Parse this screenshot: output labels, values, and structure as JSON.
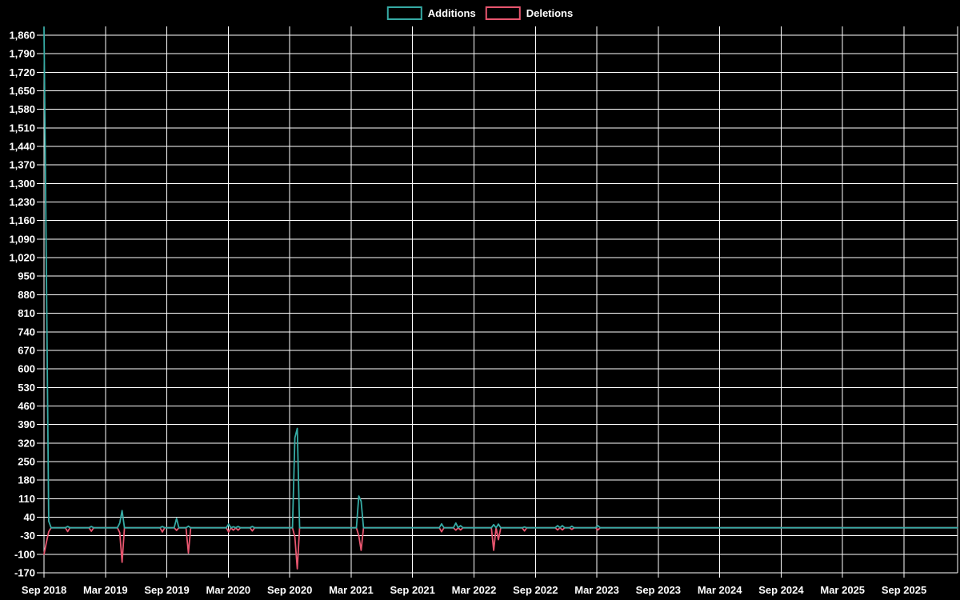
{
  "colors": {
    "background": "#000000",
    "grid": "#ffffff",
    "text": "#ffffff",
    "additions": "#36aba5",
    "deletions": "#e8566f"
  },
  "legend": {
    "items": [
      {
        "label": "Additions",
        "color": "#36aba5"
      },
      {
        "label": "Deletions",
        "color": "#e8566f"
      }
    ]
  },
  "chart_data": {
    "type": "line",
    "title": "",
    "xlabel": "",
    "ylabel": "",
    "grid": true,
    "legend_position": "top-center",
    "x_axis": {
      "tick_labels": [
        "Sep 2018",
        "Mar 2019",
        "Sep 2019",
        "Mar 2020",
        "Sep 2020",
        "Mar 2021",
        "Sep 2021",
        "Mar 2022",
        "Sep 2022",
        "Mar 2023",
        "Sep 2023",
        "Mar 2024",
        "Sep 2024",
        "Mar 2025",
        "Sep 2025"
      ]
    },
    "y_axis": {
      "grid_min": -170,
      "grid_max": 1860,
      "tick_step": 70,
      "plot_max": 1895,
      "tick_labels": [
        "1,860",
        "1,790",
        "1,720",
        "1,650",
        "1,580",
        "1,510",
        "1,440",
        "1,370",
        "1,300",
        "1,230",
        "1,160",
        "1,090",
        "1,020",
        "950",
        "880",
        "810",
        "740",
        "670",
        "600",
        "530",
        "460",
        "390",
        "320",
        "250",
        "180",
        "110",
        "40",
        "-30",
        "-100",
        "-170"
      ]
    },
    "series": [
      {
        "name": "Additions",
        "color": "#36aba5",
        "sign": "positive"
      },
      {
        "name": "Deletions",
        "color": "#e8566f",
        "sign": "negative"
      }
    ],
    "weeks_total": 387,
    "points_note": "weekly series; all weeks not listed are 0 for both series",
    "points": [
      {
        "week": 0,
        "date": "2018-09",
        "additions": 1890,
        "deletions": -100
      },
      {
        "week": 1,
        "date": "2018-09",
        "additions": 970,
        "deletions": -55
      },
      {
        "week": 2,
        "date": "2018-09",
        "additions": 25,
        "deletions": -15
      },
      {
        "week": 10,
        "date": "2018-11",
        "additions": 5,
        "deletions": -14
      },
      {
        "week": 20,
        "date": "2019-01",
        "additions": 5,
        "deletions": -13
      },
      {
        "week": 32,
        "date": "2019-04",
        "additions": 18,
        "deletions": -18
      },
      {
        "week": 33,
        "date": "2019-04",
        "additions": 65,
        "deletions": -130
      },
      {
        "week": 50,
        "date": "2019-08",
        "additions": 5,
        "deletions": -16
      },
      {
        "week": 56,
        "date": "2019-10",
        "additions": 35,
        "deletions": -10
      },
      {
        "week": 61,
        "date": "2019-11",
        "additions": 6,
        "deletions": -95
      },
      {
        "week": 78,
        "date": "2020-03",
        "additions": 14,
        "deletions": -16
      },
      {
        "week": 80,
        "date": "2020-03",
        "additions": 4,
        "deletions": -9
      },
      {
        "week": 82,
        "date": "2020-04",
        "additions": 5,
        "deletions": -9
      },
      {
        "week": 88,
        "date": "2020-05",
        "additions": 5,
        "deletions": -12
      },
      {
        "week": 106,
        "date": "2020-09",
        "additions": 340,
        "deletions": -35
      },
      {
        "week": 107,
        "date": "2020-09",
        "additions": 375,
        "deletions": -155
      },
      {
        "week": 133,
        "date": "2021-03",
        "additions": 120,
        "deletions": -30
      },
      {
        "week": 134,
        "date": "2021-04",
        "additions": 100,
        "deletions": -85
      },
      {
        "week": 168,
        "date": "2021-11",
        "additions": 15,
        "deletions": -15
      },
      {
        "week": 174,
        "date": "2022-01",
        "additions": 18,
        "deletions": -9
      },
      {
        "week": 176,
        "date": "2022-01",
        "additions": 8,
        "deletions": -8
      },
      {
        "week": 190,
        "date": "2022-04",
        "additions": 12,
        "deletions": -85
      },
      {
        "week": 192,
        "date": "2022-05",
        "additions": 14,
        "deletions": -45
      },
      {
        "week": 203,
        "date": "2022-07",
        "additions": 3,
        "deletions": -12
      },
      {
        "week": 217,
        "date": "2022-10",
        "additions": 8,
        "deletions": -8
      },
      {
        "week": 219,
        "date": "2022-11",
        "additions": 8,
        "deletions": -8
      },
      {
        "week": 223,
        "date": "2022-12",
        "additions": 6,
        "deletions": -6
      },
      {
        "week": 234,
        "date": "2023-03",
        "additions": 8,
        "deletions": -8
      }
    ]
  }
}
